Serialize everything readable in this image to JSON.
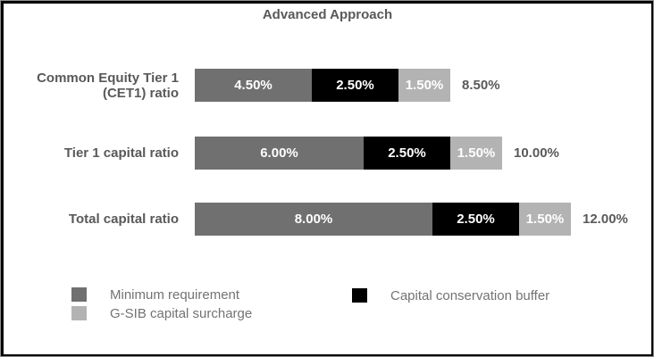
{
  "title": "Advanced Approach",
  "colors": {
    "minimum_requirement": "#707070",
    "capital_conservation_buffer": "#000000",
    "gsib_capital_surcharge": "#b3b3b3",
    "heading_text": "#595959",
    "legend_text": "#737373",
    "bar_label_text": "#ffffff"
  },
  "chart_data": {
    "type": "bar",
    "orientation": "horizontal",
    "title": "Advanced Approach",
    "categories": [
      "Common Equity Tier 1 (CET1) ratio",
      "Tier 1 capital ratio",
      "Total capital ratio"
    ],
    "category_lines": [
      [
        "Common Equity Tier 1",
        "(CET1) ratio"
      ],
      [
        "Tier 1 capital ratio"
      ],
      [
        "Total capital ratio"
      ]
    ],
    "series": [
      {
        "name": "Minimum requirement",
        "color": "#707070",
        "values": [
          4.5,
          6.0,
          8.0
        ],
        "labels": [
          "4.50%",
          "6.00%",
          "8.00%"
        ]
      },
      {
        "name": "Capital conservation buffer",
        "color": "#000000",
        "values": [
          2.5,
          2.5,
          2.5
        ],
        "labels": [
          "2.50%",
          "2.50%",
          "2.50%"
        ]
      },
      {
        "name": "G-SIB capital surcharge",
        "color": "#b3b3b3",
        "values": [
          1.5,
          1.5,
          1.5
        ],
        "labels": [
          "1.50%",
          "1.50%",
          "1.50%"
        ]
      }
    ],
    "totals": [
      8.5,
      10.0,
      12.0
    ],
    "total_labels": [
      "8.50%",
      "10.00%",
      "12.00%"
    ],
    "legend_position": "bottom",
    "grid": false,
    "value_axis_visible": false
  },
  "legend": {
    "items": [
      {
        "label": "Minimum requirement",
        "color": "#707070"
      },
      {
        "label": "G-SIB capital surcharge",
        "color": "#b3b3b3"
      },
      {
        "label": "Capital conservation buffer",
        "color": "#000000"
      }
    ]
  }
}
